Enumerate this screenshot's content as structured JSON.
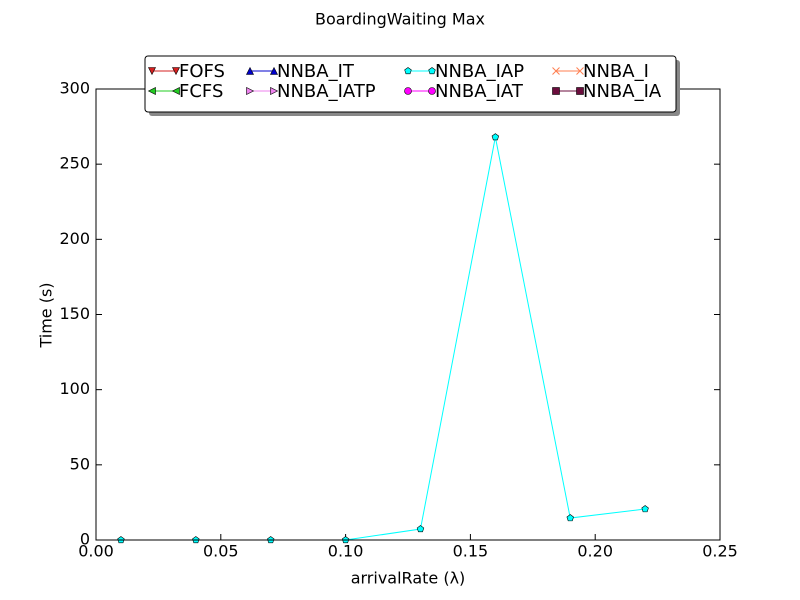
{
  "chart_data": {
    "type": "line",
    "title": "BoardingWaiting Max",
    "xlabel": "arrivalRate (λ)",
    "ylabel": "Time (s)",
    "x": [
      0.01,
      0.04,
      0.07,
      0.1,
      0.13,
      0.16,
      0.19,
      0.22
    ],
    "series": [
      {
        "name": "FOFS",
        "color": "#d62020",
        "marker": "v",
        "values": [
          null,
          null,
          null,
          null,
          null,
          null,
          null,
          null
        ]
      },
      {
        "name": "FCFS",
        "color": "#22cc22",
        "marker": "<",
        "values": [
          null,
          null,
          null,
          null,
          null,
          null,
          null,
          null
        ]
      },
      {
        "name": "NNBA_IT",
        "color": "#0000cc",
        "marker": "^",
        "values": [
          null,
          null,
          null,
          null,
          null,
          null,
          null,
          null
        ]
      },
      {
        "name": "NNBA_IATP",
        "color": "#ee82ee",
        "marker": ">",
        "values": [
          null,
          null,
          null,
          null,
          null,
          null,
          null,
          null
        ]
      },
      {
        "name": "NNBA_IAP",
        "color": "#00ffff",
        "marker": "p",
        "values": [
          0,
          0,
          0,
          0,
          7.3,
          268,
          14.6,
          20.6
        ]
      },
      {
        "name": "NNBA_IAT",
        "color": "#ff00ff",
        "marker": "o",
        "values": [
          null,
          null,
          null,
          null,
          null,
          null,
          null,
          null
        ]
      },
      {
        "name": "NNBA_I",
        "color": "#ff7f50",
        "marker": "x",
        "values": [
          null,
          null,
          null,
          null,
          null,
          null,
          null,
          null
        ]
      },
      {
        "name": "NNBA_IA",
        "color": "#6b0d3d",
        "marker": "s",
        "values": [
          null,
          null,
          null,
          null,
          null,
          null,
          null,
          null
        ]
      }
    ],
    "xlim": [
      0,
      0.25
    ],
    "xticks": [
      {
        "value": 0,
        "label": "0.00"
      },
      {
        "value": 0.05,
        "label": "0.05"
      },
      {
        "value": 0.1,
        "label": "0.10"
      },
      {
        "value": 0.15,
        "label": "0.15"
      },
      {
        "value": 0.2,
        "label": "0.20"
      },
      {
        "value": 0.25,
        "label": "0.25"
      }
    ],
    "ylim": [
      0,
      300
    ],
    "yticks": [
      0,
      50,
      100,
      150,
      200,
      250,
      300
    ],
    "grid": false,
    "legend_loc": "upper center",
    "legend_ncol": 4
  }
}
